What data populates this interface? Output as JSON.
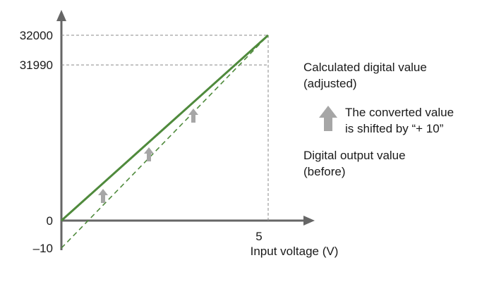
{
  "chart_data": {
    "type": "line",
    "xlabel": "Input voltage (V)",
    "ylabel": "",
    "xlim": [
      0,
      5
    ],
    "ylim": [
      -10,
      32000
    ],
    "grid": false,
    "x_ticks": [
      {
        "label": "5",
        "value": 5
      }
    ],
    "y_ticks": [
      {
        "label": "32000",
        "value": 32000
      },
      {
        "label": "31990",
        "value": 31990
      },
      {
        "label": "0",
        "value": 0
      },
      {
        "label": "–10",
        "value": -10
      }
    ],
    "series": [
      {
        "name": "Calculated digital value (adjusted)",
        "x": [
          0,
          5
        ],
        "y": [
          0,
          32000
        ],
        "style": "solid",
        "color": "#4f8a3c"
      },
      {
        "name": "Digital output value (before)",
        "x": [
          0,
          5
        ],
        "y": [
          -10,
          31990
        ],
        "style": "dashed",
        "color": "#4f8a3c"
      }
    ],
    "legend": {
      "placement": "right",
      "adjusted_line1": "Calculated digital value",
      "adjusted_line2": "(adjusted)",
      "before_line1": "Digital output value",
      "before_line2": "(before)"
    },
    "annotation": {
      "line1": "The converted value",
      "line2": "is shifted by “+ 10”",
      "icon": "up-arrow-icon",
      "color": "#a6a6a6"
    }
  }
}
